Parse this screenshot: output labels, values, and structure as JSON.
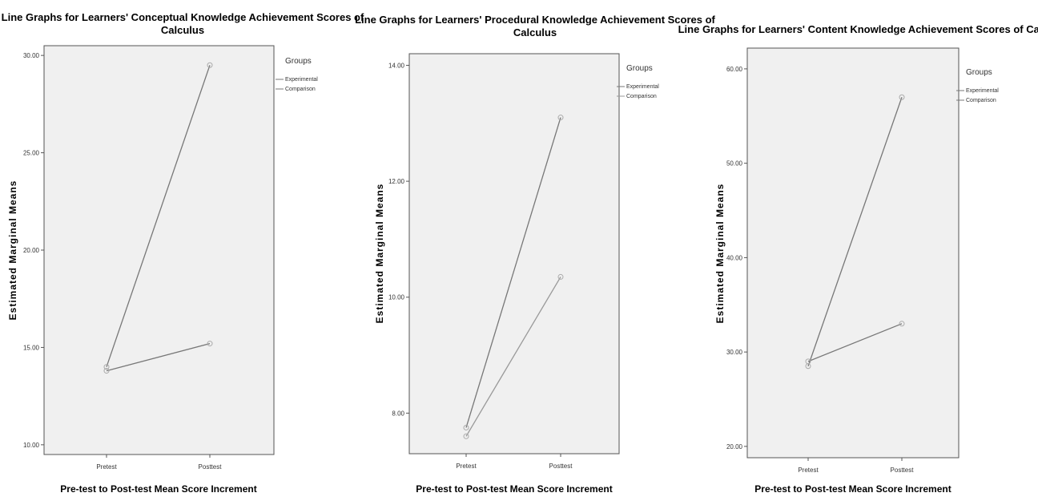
{
  "chart_data": [
    {
      "type": "line",
      "title": "Line Graphs for Learners' Conceptual Knowledge Achievement Scores of Calculus",
      "title_lines": [
        "Line Graphs for Learners' Conceptual Knowledge Achievement Scores of",
        "Calculus"
      ],
      "xlabel": "Pre-test to Post-test Mean Score Increment",
      "ylabel": "Estimated Marginal Means",
      "categories": [
        "Pretest",
        "Posttest"
      ],
      "ylim": [
        9.5,
        30.5
      ],
      "yticks": [
        10,
        15,
        20,
        25,
        30
      ],
      "ytick_labels": [
        "10.00",
        "15.00",
        "20.00",
        "25.00",
        "30.00"
      ],
      "legend_title": "Groups",
      "series": [
        {
          "name": "Experimental",
          "values": [
            14.0,
            29.5
          ],
          "color": "#777777"
        },
        {
          "name": "Comparison",
          "values": [
            13.8,
            15.2
          ],
          "color": "#777777"
        }
      ]
    },
    {
      "type": "line",
      "title": "Line Graphs for Learners' Procedural Knowledge Achievement Scores of Calculus",
      "title_lines": [
        "Line Graphs for Learners' Procedural Knowledge Achievement Scores of",
        "Calculus"
      ],
      "xlabel": "Pre-test to Post-test Mean Score Increment",
      "ylabel": "Estimated Marginal Means",
      "categories": [
        "Pretest",
        "Posttest"
      ],
      "ylim": [
        7.3,
        14.2
      ],
      "yticks": [
        8,
        10,
        12,
        14
      ],
      "ytick_labels": [
        "8.00",
        "10.00",
        "12.00",
        "14.00"
      ],
      "legend_title": "Groups",
      "series": [
        {
          "name": "Experimental",
          "values": [
            7.75,
            13.1
          ],
          "color": "#777777"
        },
        {
          "name": "Comparison",
          "values": [
            7.6,
            10.35
          ],
          "color": "#999999"
        }
      ]
    },
    {
      "type": "line",
      "title": "Line Graphs for Learners' Content Knowledge Achievement Scores of Calculus",
      "title_lines": [
        "Line Graphs for Learners' Content Knowledge Achievement Scores of Calculus"
      ],
      "xlabel": "Pre-test to Post-test Mean Score Increment",
      "ylabel": "Estimated Marginal Means",
      "categories": [
        "Pretest",
        "Posttest"
      ],
      "ylim": [
        18.8,
        62.2
      ],
      "yticks": [
        20,
        30,
        40,
        50,
        60
      ],
      "ytick_labels": [
        "20.00",
        "30.00",
        "40.00",
        "50.00",
        "60.00"
      ],
      "legend_title": "Groups",
      "series": [
        {
          "name": "Experimental",
          "values": [
            28.5,
            57.0
          ],
          "color": "#777777"
        },
        {
          "name": "Comparison",
          "values": [
            29.0,
            33.0
          ],
          "color": "#777777"
        }
      ]
    }
  ]
}
